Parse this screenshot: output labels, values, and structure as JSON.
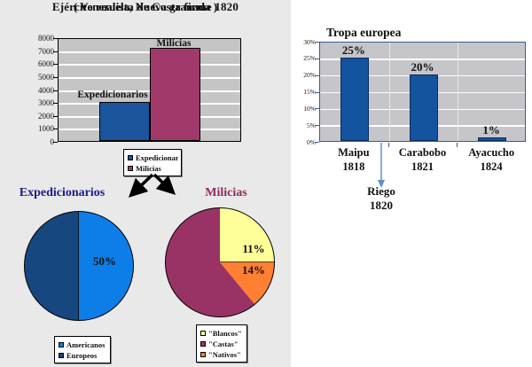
{
  "chart_data": [
    {
      "id": "ejercito-realista-bar",
      "type": "bar",
      "title": "Ejército realista de Costa firme 1820",
      "subtitle": "( Venezuela, Nueva granada )",
      "series": [
        {
          "name": "Expedicionarios",
          "legend_label": "Expedicionarios",
          "value": 3000,
          "color": "#1a559e"
        },
        {
          "name": "Milicias",
          "legend_label": "Milicias",
          "value": 7200,
          "color": "#a13a6b"
        }
      ],
      "ylim": [
        0,
        8000
      ],
      "ytick_labels": [
        "8000",
        "7000",
        "6000",
        "5000",
        "4000",
        "3000",
        "2000",
        "1000",
        "0"
      ],
      "grid": true,
      "legend_position": "bottom",
      "plot_background": "#c5c5c5"
    },
    {
      "id": "tropa-europea-bar",
      "type": "bar",
      "title": "Tropa europea",
      "categories": [
        [
          "Maipu",
          "1818"
        ],
        [
          "Carabobo",
          "1821"
        ],
        [
          "Ayacucho",
          "1824"
        ]
      ],
      "values": [
        25,
        20,
        1
      ],
      "data_labels": [
        "25%",
        "20%",
        "1%"
      ],
      "bar_color": "#14549e",
      "axis_color": "#3a5a98",
      "ylim": [
        0,
        30
      ],
      "ytick_labels": [
        "30%",
        "25%",
        "20%",
        "15%",
        "10%",
        "5%",
        "0%"
      ],
      "grid": true,
      "annotation": {
        "lines": [
          "Riego",
          "1820"
        ],
        "arrow_color": "#5e8fc4"
      }
    },
    {
      "id": "expedicionarios-pie",
      "type": "pie",
      "title": "Expedicionarios",
      "title_color": "#1a1a8c",
      "rotation_deg": 0,
      "slices": [
        {
          "label": "Americanos",
          "value": 50,
          "color": "#0d7de8"
        },
        {
          "label": "Europeos",
          "value": 50,
          "color": "#17477f"
        }
      ],
      "data_labels": [
        "50%"
      ],
      "legend_items": [
        {
          "label": "Americanos",
          "color": "#0d7de8"
        },
        {
          "label": "Europeos",
          "color": "#17477f"
        }
      ],
      "legend_position": "bottom"
    },
    {
      "id": "milicias-pie",
      "type": "pie",
      "title": "Milicias",
      "title_color": "#8e2b5c",
      "rotation_deg": 50.4,
      "slices": [
        {
          "label": "\"Blancos\"",
          "value": 11,
          "color": "#ffff99"
        },
        {
          "label": "\"Nativos\"",
          "value": 14,
          "color": "#ff8033"
        },
        {
          "label": "\"Castas\"",
          "value": 75,
          "color": "#993366"
        }
      ],
      "data_labels": [
        "11%",
        "14%"
      ],
      "legend_items": [
        {
          "label": "\"Blancos\"",
          "color": "#ffff99"
        },
        {
          "label": "\"Castas\"",
          "color": "#993366"
        },
        {
          "label": "\"Nativos\"",
          "color": "#ff8033"
        }
      ],
      "legend_position": "bottom"
    }
  ]
}
